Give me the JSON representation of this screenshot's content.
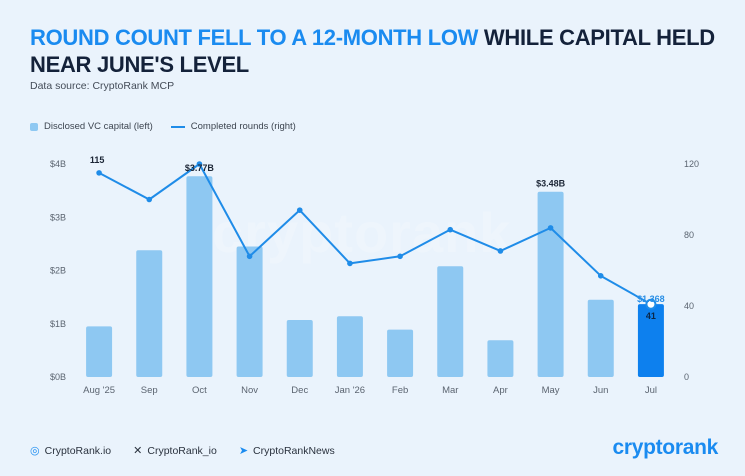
{
  "title": {
    "highlight": "ROUND COUNT FELL TO A 12-MONTH LOW",
    "rest": " WHILE CAPITAL HELD NEAR JUNE'S LEVEL"
  },
  "source": "Data source: CryptoRank MCP",
  "legend": {
    "bar_label": "Disclosed VC capital (left)",
    "line_label": "Completed rounds (right)"
  },
  "colors": {
    "bar": "#8ec8f2",
    "bar_highlight": "#0d80ee",
    "line": "#1f8ce8",
    "accent": "#1a8bf0",
    "title": "#14223a"
  },
  "chart_data": {
    "type": "bar",
    "categories": [
      "Aug '25",
      "Sep",
      "Oct",
      "Nov",
      "Dec",
      "Jan '26",
      "Feb",
      "Mar",
      "Apr",
      "May",
      "Jun",
      "Jul"
    ],
    "series": [
      {
        "name": "Disclosed VC capital (left)",
        "type": "bar",
        "axis": "left",
        "values": [
          0.95,
          2.38,
          3.77,
          2.45,
          1.07,
          1.14,
          0.89,
          2.08,
          0.69,
          3.48,
          1.45,
          1.368
        ]
      },
      {
        "name": "Completed rounds (right)",
        "type": "line",
        "axis": "right",
        "values": [
          115,
          100,
          120,
          68,
          94,
          64,
          68,
          83,
          71,
          84,
          57,
          41
        ]
      }
    ],
    "highlight_index": 11,
    "left_axis": {
      "ticks": [
        "$0B",
        "$1B",
        "$2B",
        "$3B",
        "$4B"
      ],
      "ylim": [
        0,
        4
      ]
    },
    "right_axis": {
      "ticks": [
        "0",
        "40",
        "80",
        "120"
      ],
      "ylim": [
        0,
        120
      ]
    },
    "bar_labels": [
      {
        "index": 2,
        "text": "$3.77B"
      },
      {
        "index": 9,
        "text": "$3.48B"
      },
      {
        "index": 11,
        "text": "$1.368"
      }
    ],
    "line_labels": [
      {
        "index": 0,
        "text": "115"
      },
      {
        "index": 11,
        "text": "41"
      }
    ],
    "grid": false,
    "legend_position": "top-left"
  },
  "footer": {
    "site": "CryptoRank.io",
    "x_handle": "CryptoRank_io",
    "telegram": "CryptoRankNews"
  },
  "brand": "cryptorank",
  "watermark": "cryptorank"
}
